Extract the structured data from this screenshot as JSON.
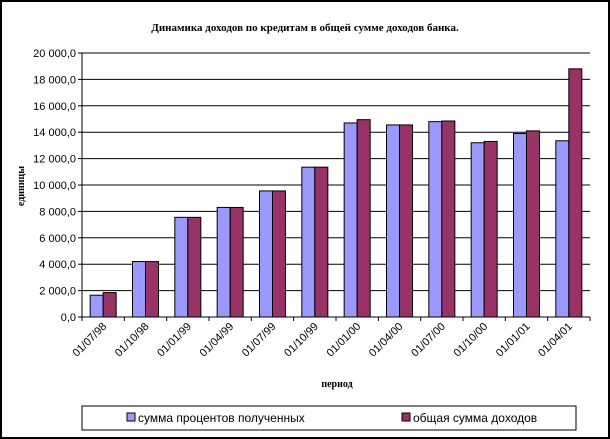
{
  "chart_data": {
    "type": "bar",
    "title": "Динамика доходов по кредитам в общей сумме доходов банка.",
    "xlabel": "период",
    "ylabel": "единицы",
    "categories": [
      "01/07/98",
      "01/10/98",
      "01/01/99",
      "01/04/99",
      "01/07/99",
      "01/10/99",
      "01/01/00",
      "01/04/00",
      "01/07/00",
      "01/10/00",
      "01/01/01",
      "01/04/01"
    ],
    "series": [
      {
        "name": "сумма процентов полученных",
        "color": "#9999ff",
        "values": [
          1650,
          4200,
          7550,
          8300,
          9550,
          11350,
          14700,
          14550,
          14800,
          13200,
          13900,
          13350
        ]
      },
      {
        "name": "общая сумма доходов",
        "color": "#993366",
        "values": [
          1850,
          4200,
          7550,
          8300,
          9550,
          11350,
          14950,
          14550,
          14850,
          13300,
          14100,
          18800
        ]
      }
    ],
    "ylim": [
      0,
      20000
    ],
    "y_ticks": [
      "0,0",
      "2 000,0",
      "4 000,0",
      "6 000,0",
      "8 000,0",
      "10 000,0",
      "12 000,0",
      "14 000,0",
      "16 000,0",
      "18 000,0",
      "20 000,0"
    ],
    "grid": true,
    "legend": "bottom"
  }
}
